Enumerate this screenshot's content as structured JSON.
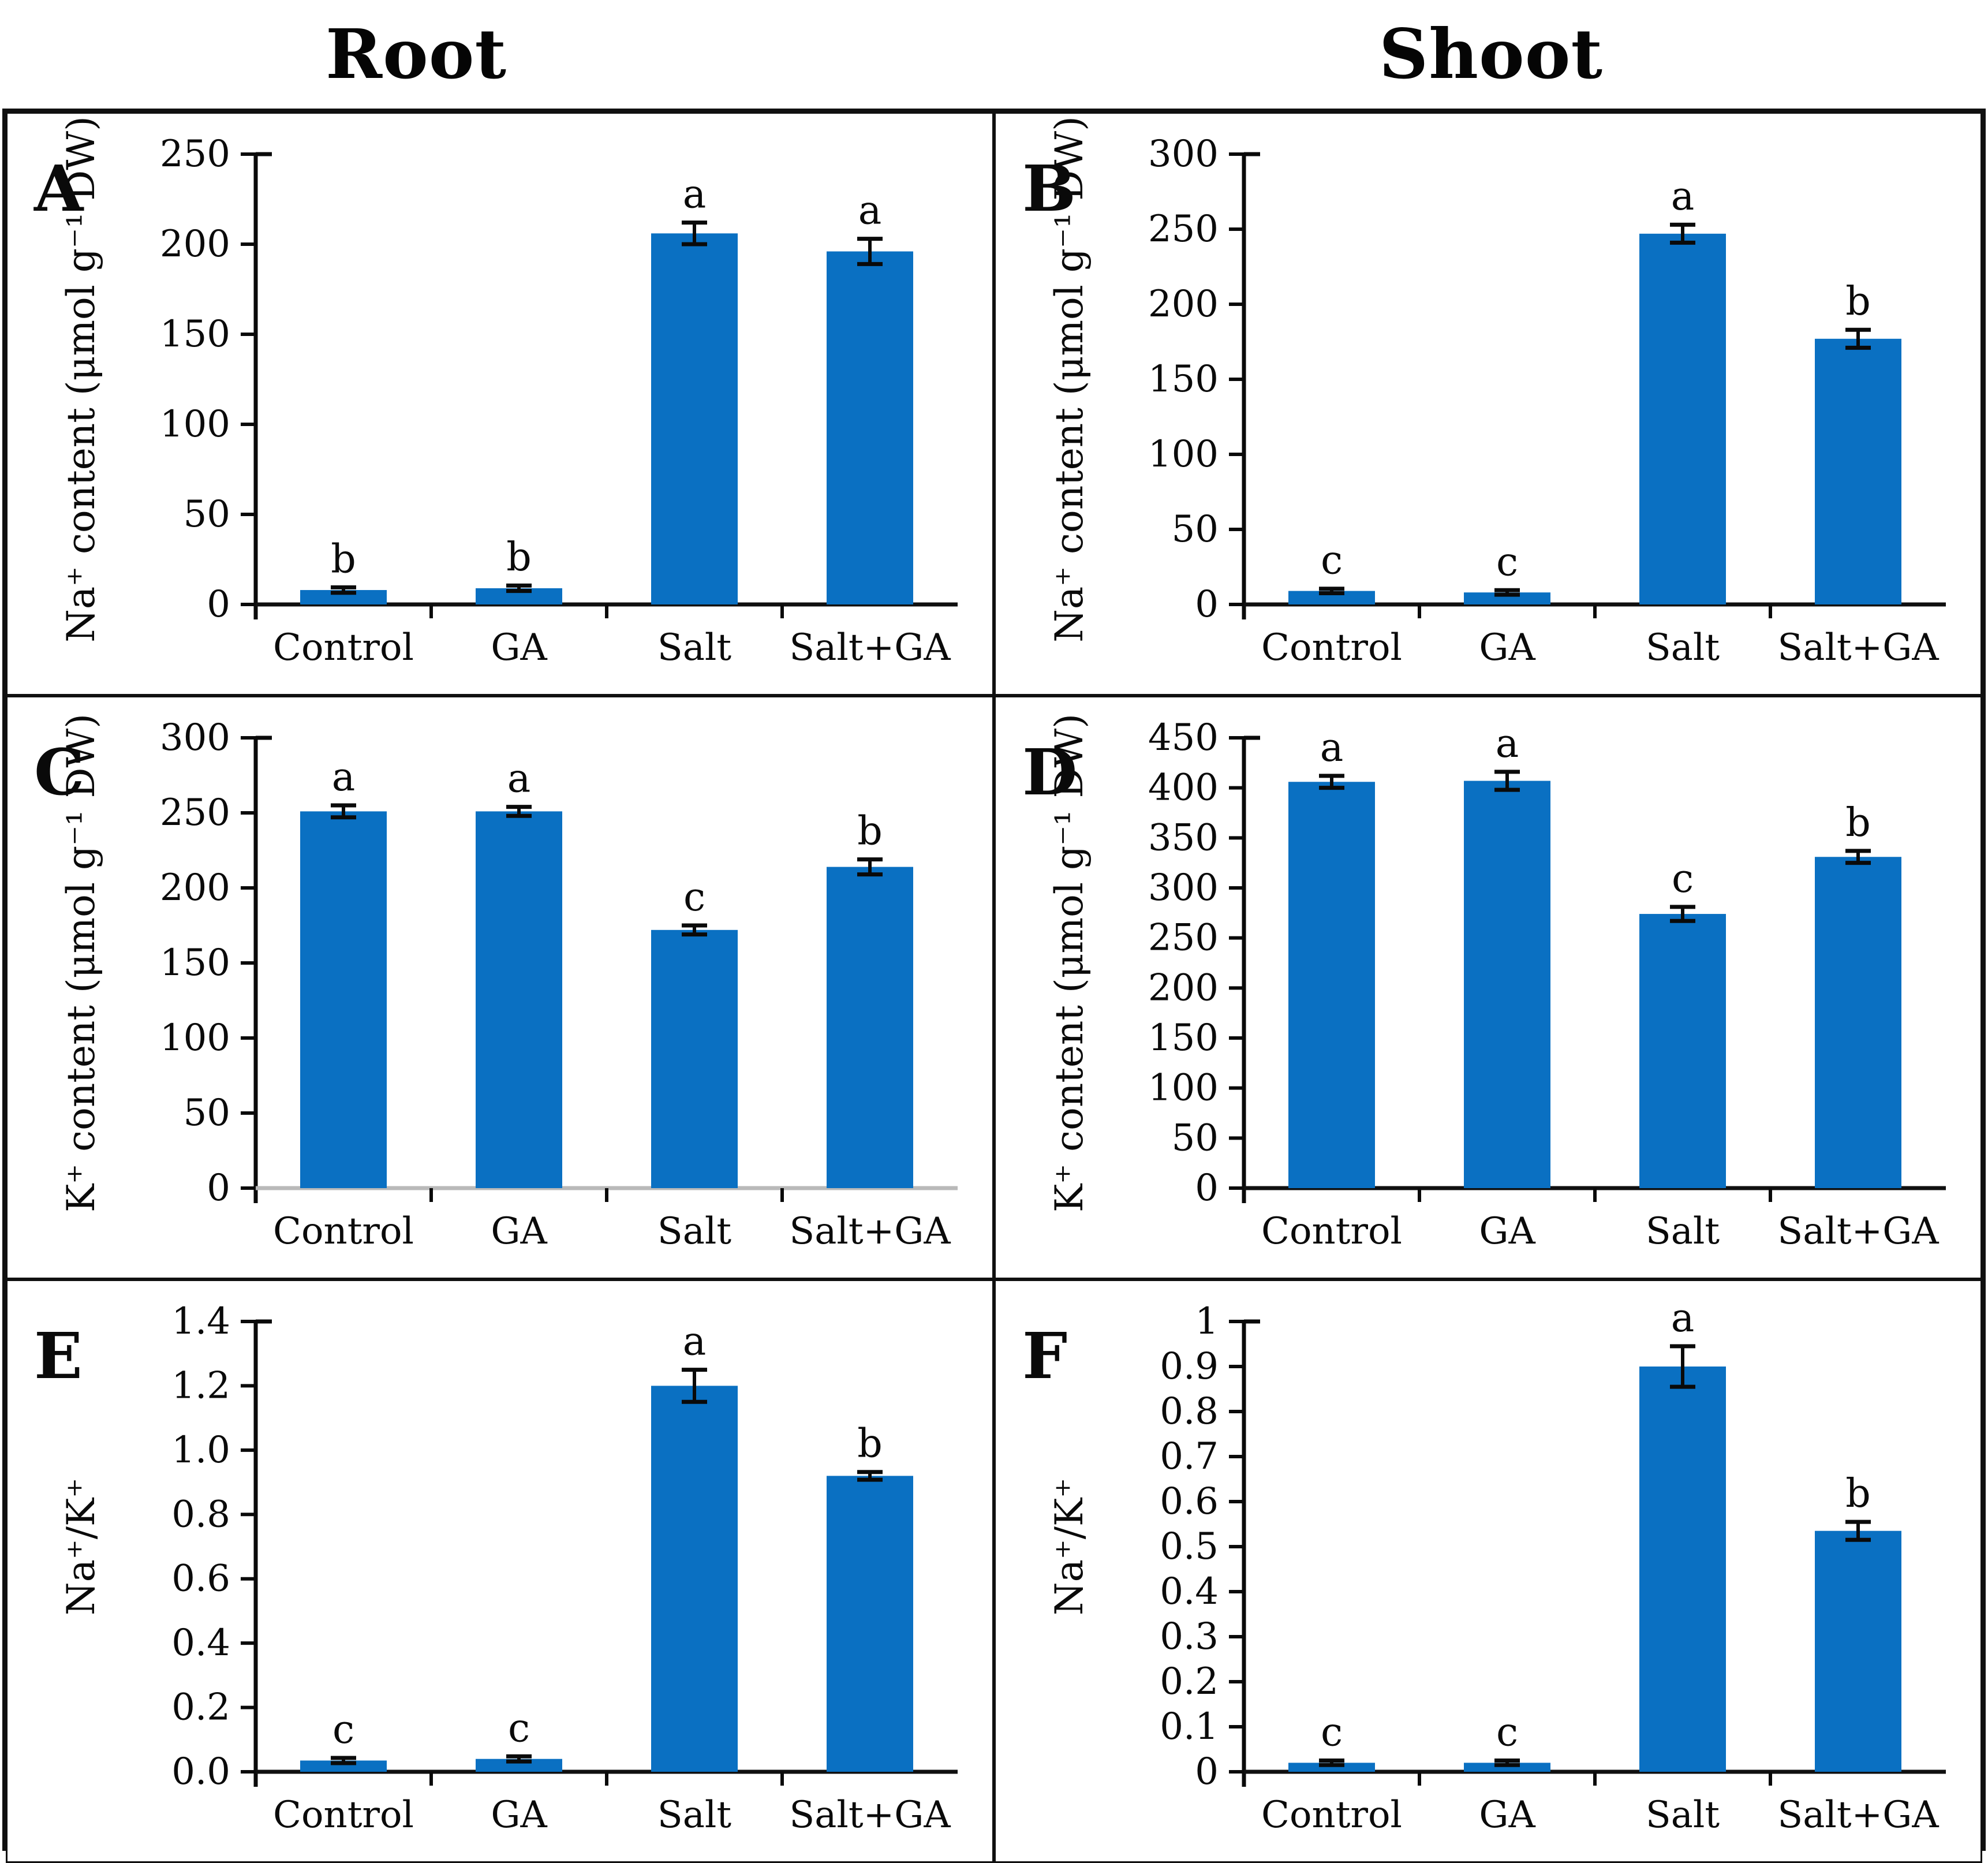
{
  "figure": {
    "column_titles": [
      "Root",
      "Shoot"
    ]
  },
  "chart_data": [
    {
      "type": "bar",
      "panel_label": "A",
      "column": "Root",
      "ylabel": "Na⁺ content (μmol g⁻¹ DW)",
      "categories": [
        "Control",
        "GA",
        "Salt",
        "Salt+GA"
      ],
      "values": [
        8,
        9,
        206,
        196
      ],
      "errors": [
        1.5,
        1.5,
        6,
        7
      ],
      "sig_letters": [
        "b",
        "b",
        "a",
        "a"
      ],
      "ylim": [
        0,
        250
      ],
      "ytick_values": [
        0,
        50,
        100,
        150,
        200,
        250
      ],
      "ytick_labels": [
        "0",
        "50",
        "100",
        "150",
        "200",
        "250"
      ],
      "bar_color": "#0a70c2",
      "baseline_color": "#101010",
      "grid": false,
      "legend": "none"
    },
    {
      "type": "bar",
      "panel_label": "B",
      "column": "Shoot",
      "ylabel": "Na⁺ content (μmol g⁻¹ DW)",
      "categories": [
        "Control",
        "GA",
        "Salt",
        "Salt+GA"
      ],
      "values": [
        9,
        8,
        247,
        177
      ],
      "errors": [
        1.5,
        1.5,
        6,
        6
      ],
      "sig_letters": [
        "c",
        "c",
        "a",
        "b"
      ],
      "ylim": [
        0,
        300
      ],
      "ytick_values": [
        0,
        50,
        100,
        150,
        200,
        250,
        300
      ],
      "ytick_labels": [
        "0",
        "50",
        "100",
        "150",
        "200",
        "250",
        "300"
      ],
      "bar_color": "#0a70c2",
      "baseline_color": "#101010",
      "grid": false,
      "legend": "none"
    },
    {
      "type": "bar",
      "panel_label": "C",
      "column": "Root",
      "ylabel": "K⁺ content (μmol g⁻¹ DW)",
      "categories": [
        "Control",
        "GA",
        "Salt",
        "Salt+GA"
      ],
      "values": [
        251,
        251,
        172,
        214
      ],
      "errors": [
        4,
        3,
        3,
        5
      ],
      "sig_letters": [
        "a",
        "a",
        "c",
        "b"
      ],
      "ylim": [
        0,
        300
      ],
      "ytick_values": [
        0,
        50,
        100,
        150,
        200,
        250,
        300
      ],
      "ytick_labels": [
        "0",
        "50",
        "100",
        "150",
        "200",
        "250",
        "300"
      ],
      "bar_color": "#0a70c2",
      "baseline_color": "#b9b9b9",
      "grid": false,
      "legend": "none"
    },
    {
      "type": "bar",
      "panel_label": "D",
      "column": "Shoot",
      "ylabel": "K⁺ content (μmol g⁻¹ DW)",
      "categories": [
        "Control",
        "GA",
        "Salt",
        "Salt+GA"
      ],
      "values": [
        406,
        407,
        274,
        331
      ],
      "errors": [
        6,
        9,
        7,
        6
      ],
      "sig_letters": [
        "a",
        "a",
        "c",
        "b"
      ],
      "ylim": [
        0,
        450
      ],
      "ytick_values": [
        0,
        50,
        100,
        150,
        200,
        250,
        300,
        350,
        400,
        450
      ],
      "ytick_labels": [
        "0",
        "50",
        "100",
        "150",
        "200",
        "250",
        "300",
        "350",
        "400",
        "450"
      ],
      "bar_color": "#0a70c2",
      "baseline_color": "#101010",
      "grid": false,
      "legend": "none"
    },
    {
      "type": "bar",
      "panel_label": "E",
      "column": "Root",
      "ylabel": "Na⁺/K⁺",
      "categories": [
        "Control",
        "GA",
        "Salt",
        "Salt+GA"
      ],
      "values": [
        0.035,
        0.04,
        1.2,
        0.92
      ],
      "errors": [
        0.008,
        0.008,
        0.05,
        0.012
      ],
      "sig_letters": [
        "c",
        "c",
        "a",
        "b"
      ],
      "ylim": [
        0,
        1.4
      ],
      "ytick_values": [
        0,
        0.2,
        0.4,
        0.6,
        0.8,
        1.0,
        1.2,
        1.4
      ],
      "ytick_labels": [
        "0.0",
        "0.2",
        "0.4",
        "0.6",
        "0.8",
        "1.0",
        "1.2",
        "1.4"
      ],
      "bar_color": "#0a70c2",
      "baseline_color": "#101010",
      "grid": false,
      "legend": "none"
    },
    {
      "type": "bar",
      "panel_label": "F",
      "column": "Shoot",
      "ylabel": "Na⁺/K⁺",
      "categories": [
        "Control",
        "GA",
        "Salt",
        "Salt+GA"
      ],
      "values": [
        0.02,
        0.02,
        0.9,
        0.535
      ],
      "errors": [
        0.005,
        0.005,
        0.045,
        0.02
      ],
      "sig_letters": [
        "c",
        "c",
        "a",
        "b"
      ],
      "ylim": [
        0,
        1
      ],
      "ytick_values": [
        0,
        0.1,
        0.2,
        0.3,
        0.4,
        0.5,
        0.6,
        0.7,
        0.8,
        0.9,
        1
      ],
      "ytick_labels": [
        "0",
        "0.1",
        "0.2",
        "0.3",
        "0.4",
        "0.5",
        "0.6",
        "0.7",
        "0.8",
        "0.9",
        "1"
      ],
      "bar_color": "#0a70c2",
      "baseline_color": "#101010",
      "grid": false,
      "legend": "none"
    }
  ]
}
